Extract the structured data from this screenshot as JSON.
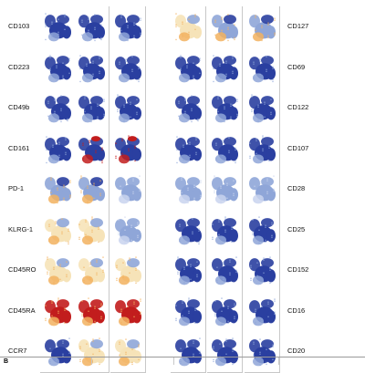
{
  "panel_b_label": "B",
  "left_rows": [
    {
      "label": "CD103",
      "scheme": [
        "blue",
        "blue",
        "blue"
      ]
    },
    {
      "label": "CD223",
      "scheme": [
        "blue",
        "blue",
        "blue"
      ]
    },
    {
      "label": "CD49b",
      "scheme": [
        "blue",
        "blue",
        "blue"
      ]
    },
    {
      "label": "CD161",
      "scheme": [
        "blue",
        "red-top",
        "red-top"
      ]
    },
    {
      "label": "PD-1",
      "scheme": [
        "mixed",
        "mixed",
        "light"
      ]
    },
    {
      "label": "KLRG-1",
      "scheme": [
        "orange",
        "orange",
        "light"
      ]
    },
    {
      "label": "CD45RO",
      "scheme": [
        "orange",
        "orange",
        "orange"
      ]
    },
    {
      "label": "CD45RA",
      "scheme": [
        "red",
        "red",
        "red"
      ]
    },
    {
      "label": "CCR7",
      "scheme": [
        "blue",
        "orange",
        "orange"
      ]
    }
  ],
  "right_rows": [
    {
      "label": "CD127",
      "scheme": [
        "orange",
        "mixed",
        "mixed"
      ]
    },
    {
      "label": "CD69",
      "scheme": [
        "blue",
        "blue",
        "blue"
      ]
    },
    {
      "label": "CD122",
      "scheme": [
        "blue",
        "blue",
        "blue"
      ]
    },
    {
      "label": "CD107",
      "scheme": [
        "blue",
        "blue",
        "blue"
      ]
    },
    {
      "label": "CD28",
      "scheme": [
        "light",
        "light",
        "light"
      ]
    },
    {
      "label": "CD25",
      "scheme": [
        "blue",
        "blue",
        "blue"
      ]
    },
    {
      "label": "CD152",
      "scheme": [
        "blue",
        "blue",
        "blue"
      ]
    },
    {
      "label": "CD16",
      "scheme": [
        "blue",
        "blue",
        "blue"
      ]
    },
    {
      "label": "CD20",
      "scheme": [
        "blue",
        "blue",
        "blue"
      ]
    }
  ],
  "colors": {
    "blue": "#2a3fa0",
    "lightblue": "#8fa6d8",
    "orange": "#f2b25f",
    "red": "#c21d1d",
    "cream": "#f6e3b8"
  }
}
